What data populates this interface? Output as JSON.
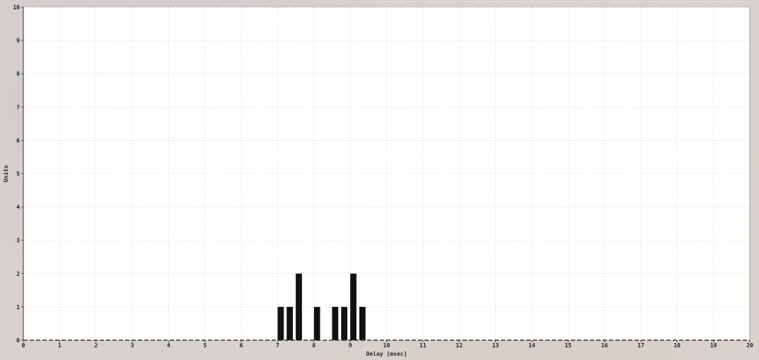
{
  "chart_data": {
    "type": "bar",
    "title": "",
    "xlabel": "Delay [msec]",
    "ylabel": "Units",
    "xlim": [
      0,
      20
    ],
    "ylim": [
      0,
      10
    ],
    "x_ticks": [
      0,
      1,
      2,
      3,
      4,
      5,
      6,
      7,
      8,
      9,
      10,
      11,
      12,
      13,
      14,
      15,
      16,
      17,
      18,
      19,
      20
    ],
    "y_ticks": [
      0,
      1,
      2,
      3,
      4,
      5,
      6,
      7,
      8,
      9,
      10
    ],
    "grid": true,
    "bar_width": 0.17,
    "x": [
      7.0,
      7.25,
      7.5,
      8.0,
      8.5,
      8.75,
      9.0,
      9.25
    ],
    "values": [
      1,
      1,
      2,
      1,
      1,
      1,
      2,
      1
    ],
    "colors": {
      "bar": "#111111",
      "plot_bg": "#fefefc",
      "grid": "#b4b4b4",
      "axis": "#333333"
    }
  }
}
